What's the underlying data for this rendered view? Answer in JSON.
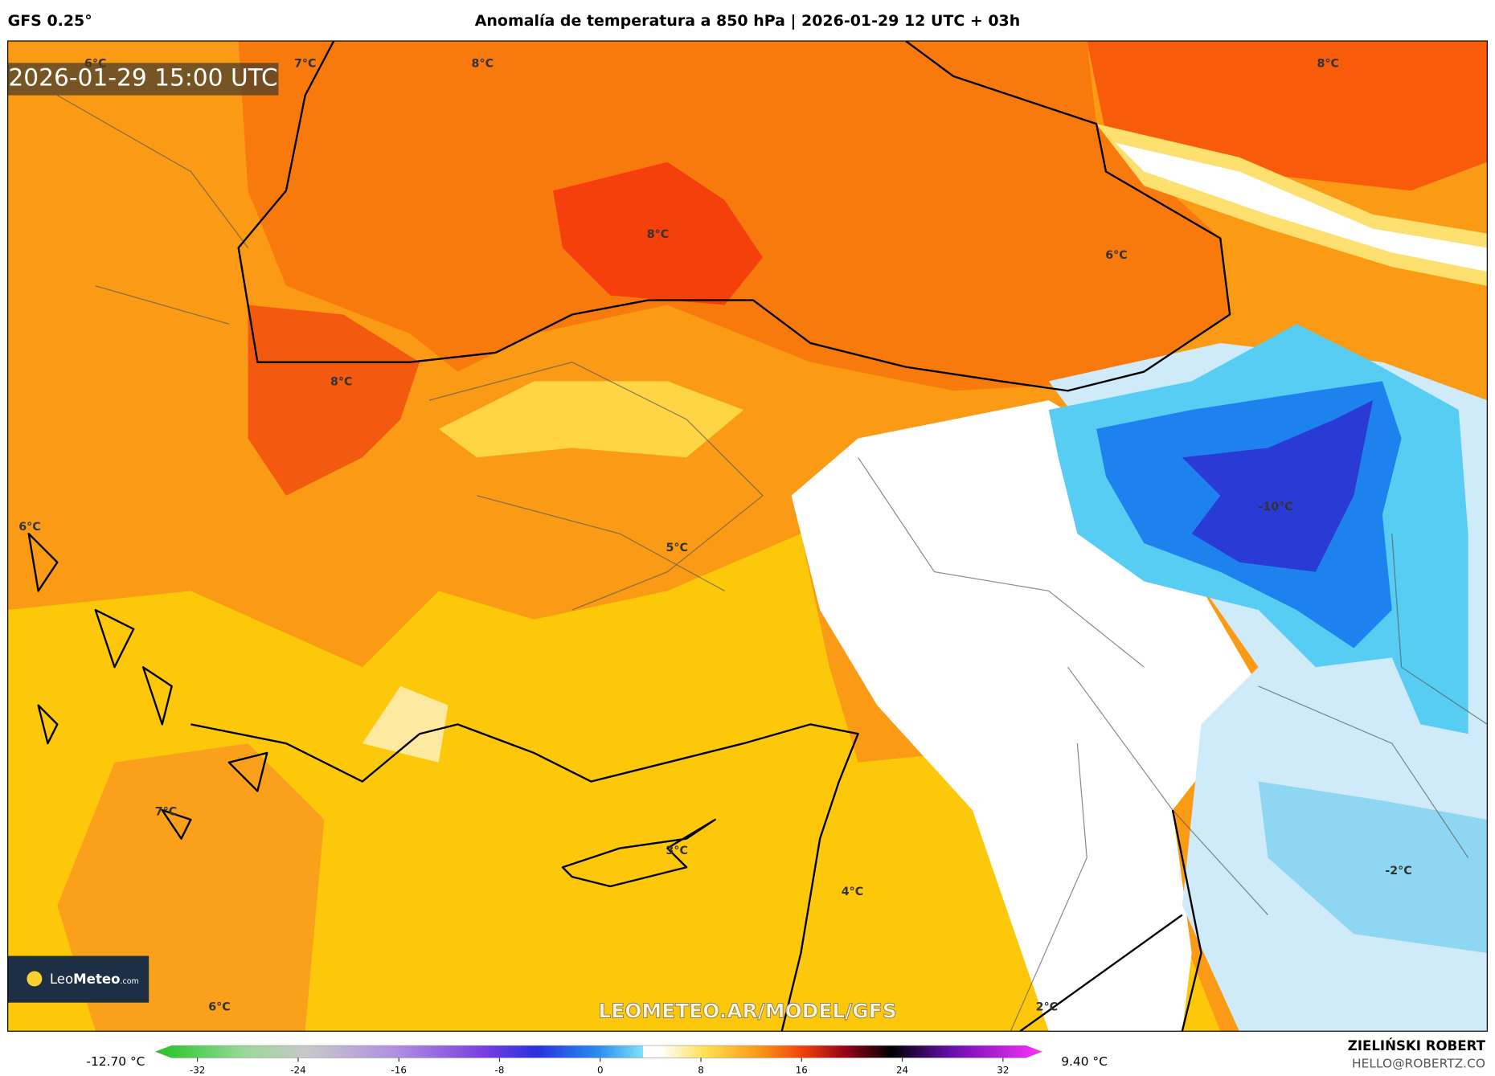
{
  "header": {
    "model": "GFS 0.25°",
    "title": "Anomalía de temperatura a 850 hPa | 2026-01-29 12 UTC + 03h"
  },
  "map": {
    "timestamp": "2026-01-29 15:00 UTC",
    "contour_labels": [
      "6°C",
      "7°C",
      "8°C",
      "8°C",
      "8°C",
      "6°C",
      "8°C",
      "6°C",
      "5°C",
      "-10°C",
      "7°C",
      "3°C",
      "4°C",
      "-2°C",
      "6°C",
      "2°C"
    ],
    "watermark": "LEOMETEO.AR/MODEL/GFS",
    "logo": {
      "light": "Leo",
      "bold": "Meteo",
      "suffix": ".com"
    }
  },
  "colorbar": {
    "min_label": "-12.70 °C",
    "max_label": "9.40 °C",
    "ticks": [
      -32,
      -24,
      -16,
      -8,
      0,
      8,
      16,
      24,
      32
    ]
  },
  "credits": {
    "author": "ZIELIŃSKI ROBERT",
    "email": "HELLO@ROBERTZ.CO"
  }
}
